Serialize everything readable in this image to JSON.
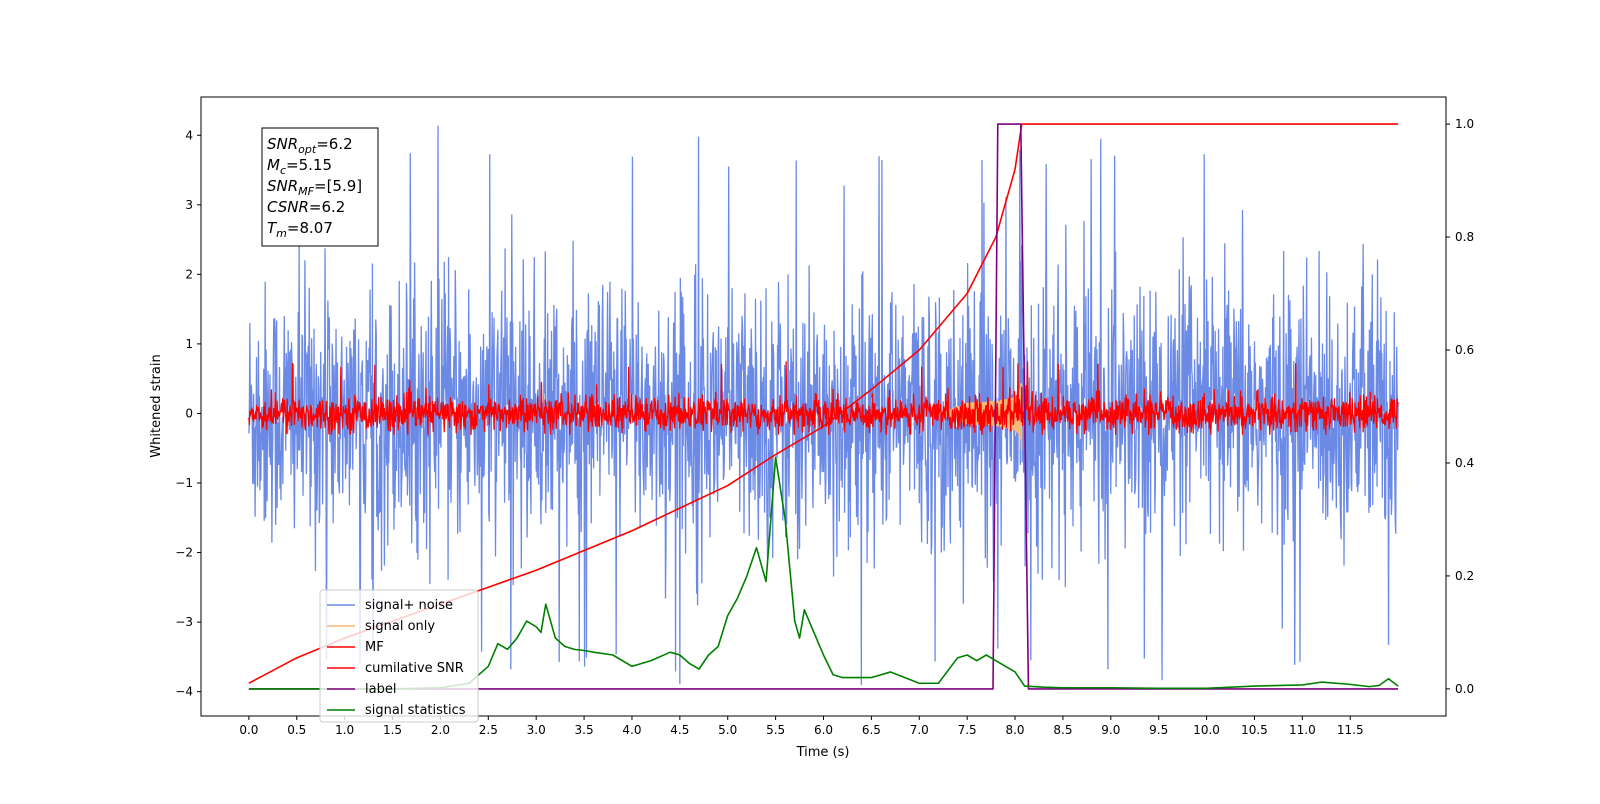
{
  "chart_data": {
    "type": "line",
    "xlabel": "Time (s)",
    "ylabel": "Whitened strain",
    "xlim": [
      -0.5,
      12.5
    ],
    "ylim": [
      -4.35,
      4.55
    ],
    "y2lim": [
      -0.048,
      1.048
    ],
    "xticks": [
      0.0,
      0.5,
      1.0,
      1.5,
      2.0,
      2.5,
      3.0,
      3.5,
      4.0,
      4.5,
      5.0,
      5.5,
      6.0,
      6.5,
      7.0,
      7.5,
      8.0,
      8.5,
      9.0,
      9.5,
      10.0,
      10.5,
      11.0,
      11.5
    ],
    "xtick_labels": [
      "0.0",
      "0.5",
      "1.0",
      "1.5",
      "2.0",
      "2.5",
      "3.0",
      "3.5",
      "4.0",
      "4.5",
      "5.0",
      "5.5",
      "6.0",
      "6.5",
      "7.0",
      "7.5",
      "8.0",
      "8.5",
      "9.0",
      "9.5",
      "10.0",
      "10.5",
      "11.0",
      "11.5"
    ],
    "yticks": [
      -4,
      -3,
      -2,
      -1,
      0,
      1,
      2,
      3,
      4
    ],
    "ytick_labels": [
      "−4",
      "−3",
      "−2",
      "−1",
      "0",
      "1",
      "2",
      "3",
      "4"
    ],
    "y2ticks": [
      0.0,
      0.2,
      0.4,
      0.6,
      0.8,
      1.0
    ],
    "y2tick_labels": [
      "0.0",
      "0.2",
      "0.4",
      "0.6",
      "0.8",
      "1.0"
    ],
    "legend_position": "lower-left",
    "annotation_box": [
      {
        "sym": "SNR",
        "sub": "opt",
        "val": "=6.2"
      },
      {
        "sym": "M",
        "sub": "c",
        "val": "=5.15"
      },
      {
        "sym": "SNR",
        "sub": "MF",
        "val": "=[5.9]"
      },
      {
        "sym": "CSNR",
        "sub": "",
        "val": "=6.2"
      },
      {
        "sym": "T",
        "sub": "m",
        "val": "=8.07"
      }
    ],
    "series": [
      {
        "name": "signal+ noise",
        "axis": "left",
        "color": "#6b8ae6",
        "kind": "noise",
        "range": [
          0,
          12
        ],
        "amplitude": 1.5,
        "peak_min": -3.9,
        "peak_max": 4.15
      },
      {
        "name": "signal only",
        "axis": "left",
        "color": "#f5b979",
        "kind": "chirp",
        "range": [
          7.2,
          8.07
        ],
        "amplitude_max": 0.6
      },
      {
        "name": "MF",
        "axis": "left",
        "color": "#ff0000",
        "kind": "noise",
        "range": [
          0,
          12
        ],
        "amplitude": 0.2,
        "peak_min": -0.3,
        "peak_max": 0.75
      },
      {
        "name": "cumilative SNR",
        "axis": "right",
        "color": "#ff0000",
        "x": [
          0.0,
          0.5,
          1.0,
          1.5,
          2.0,
          2.5,
          3.0,
          3.5,
          4.0,
          4.5,
          5.0,
          5.5,
          6.0,
          6.5,
          7.0,
          7.5,
          7.8,
          8.0,
          8.07,
          8.5,
          9.0,
          9.5,
          10.0,
          10.5,
          11.0,
          11.5,
          12.0
        ],
        "y": [
          0.01,
          0.055,
          0.09,
          0.12,
          0.15,
          0.18,
          0.21,
          0.245,
          0.28,
          0.32,
          0.36,
          0.415,
          0.465,
          0.53,
          0.6,
          0.7,
          0.8,
          0.92,
          1.0,
          1.0,
          1.0,
          1.0,
          1.0,
          1.0,
          1.0,
          1.0,
          1.0
        ]
      },
      {
        "name": "label",
        "axis": "right",
        "color": "#800080",
        "x": [
          0.0,
          7.77,
          7.82,
          8.06,
          8.14,
          12.0
        ],
        "y": [
          0.0,
          0.0,
          1.0,
          1.0,
          0.0,
          0.0
        ]
      },
      {
        "name": "signal statistics",
        "axis": "right",
        "color": "#008000",
        "x": [
          0.0,
          0.5,
          1.0,
          1.5,
          2.0,
          2.3,
          2.5,
          2.6,
          2.7,
          2.8,
          2.9,
          3.0,
          3.05,
          3.1,
          3.2,
          3.3,
          3.4,
          3.5,
          3.6,
          3.8,
          4.0,
          4.2,
          4.4,
          4.5,
          4.6,
          4.7,
          4.8,
          4.9,
          5.0,
          5.1,
          5.2,
          5.3,
          5.4,
          5.5,
          5.6,
          5.7,
          5.75,
          5.8,
          5.9,
          6.0,
          6.1,
          6.2,
          6.5,
          6.7,
          7.0,
          7.2,
          7.4,
          7.5,
          7.6,
          7.7,
          7.8,
          7.9,
          8.0,
          8.1,
          8.3,
          8.5,
          9.0,
          9.5,
          10.0,
          10.5,
          11.0,
          11.2,
          11.5,
          11.7,
          11.8,
          11.9,
          12.0
        ],
        "y": [
          0.0,
          0.0,
          0.0,
          0.0,
          0.002,
          0.01,
          0.04,
          0.08,
          0.07,
          0.09,
          0.12,
          0.11,
          0.1,
          0.15,
          0.09,
          0.075,
          0.07,
          0.068,
          0.065,
          0.06,
          0.04,
          0.05,
          0.065,
          0.06,
          0.045,
          0.035,
          0.06,
          0.075,
          0.13,
          0.16,
          0.2,
          0.25,
          0.19,
          0.41,
          0.3,
          0.12,
          0.09,
          0.14,
          0.1,
          0.06,
          0.025,
          0.02,
          0.02,
          0.03,
          0.01,
          0.01,
          0.055,
          0.06,
          0.05,
          0.06,
          0.05,
          0.04,
          0.03,
          0.005,
          0.003,
          0.002,
          0.002,
          0.001,
          0.001,
          0.005,
          0.007,
          0.012,
          0.008,
          0.004,
          0.006,
          0.018,
          0.005
        ]
      }
    ]
  }
}
